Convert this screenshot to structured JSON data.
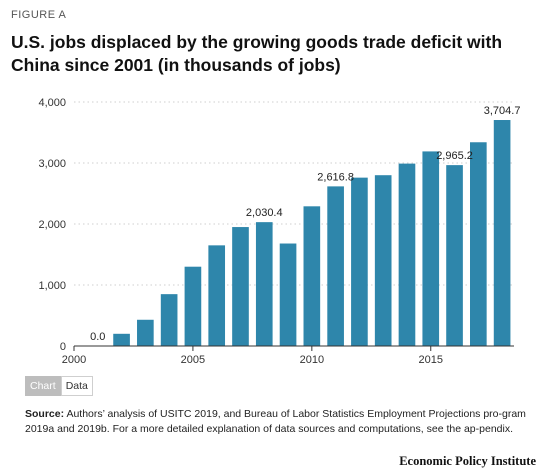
{
  "figure_label": "FIGURE A",
  "title": "U.S. jobs displaced by the growing goods trade deficit with China since 2001 (in thousands of jobs)",
  "toggle": {
    "chart_label": "Chart",
    "data_label": "Data"
  },
  "source": {
    "label": "Source:",
    "text": "Authors’ analysis of USITC 2019, and Bureau of Labor Statistics Employment Projections pro-gram 2019a and 2019b. For a more detailed explanation of data sources and computations, see the ap-pendix."
  },
  "brand": "Economic Policy Institute",
  "colors": {
    "bar": "#2e86ab",
    "grid": "#cfcfcf",
    "axis": "#333333"
  },
  "chart_data": {
    "type": "bar",
    "x": [
      2001,
      2002,
      2003,
      2004,
      2005,
      2006,
      2007,
      2008,
      2009,
      2010,
      2011,
      2012,
      2013,
      2014,
      2015,
      2016,
      2017,
      2018
    ],
    "values": [
      0.0,
      200,
      430,
      850,
      1300,
      1650,
      1950,
      2030.4,
      1680,
      2290,
      2616.8,
      2760,
      2800,
      2990,
      3190,
      2965.2,
      3340,
      3704.7
    ],
    "data_labels": [
      {
        "x": 2001,
        "text": "0.0"
      },
      {
        "x": 2008,
        "text": "2,030.4"
      },
      {
        "x": 2011,
        "text": "2,616.8"
      },
      {
        "x": 2016,
        "text": "2,965.2"
      },
      {
        "x": 2018,
        "text": "3,704.7"
      }
    ],
    "y_ticks": [
      0,
      1000,
      2000,
      3000,
      4000
    ],
    "y_tick_labels": [
      "0",
      "1,000",
      "2,000",
      "3,000",
      "4,000"
    ],
    "x_ticks": [
      2000,
      2005,
      2010,
      2015
    ],
    "x_tick_labels": [
      "2000",
      "2005",
      "2010",
      "2015"
    ],
    "ylim": [
      0,
      4000
    ],
    "xlim": [
      2000,
      2018.5
    ],
    "grid": true
  }
}
